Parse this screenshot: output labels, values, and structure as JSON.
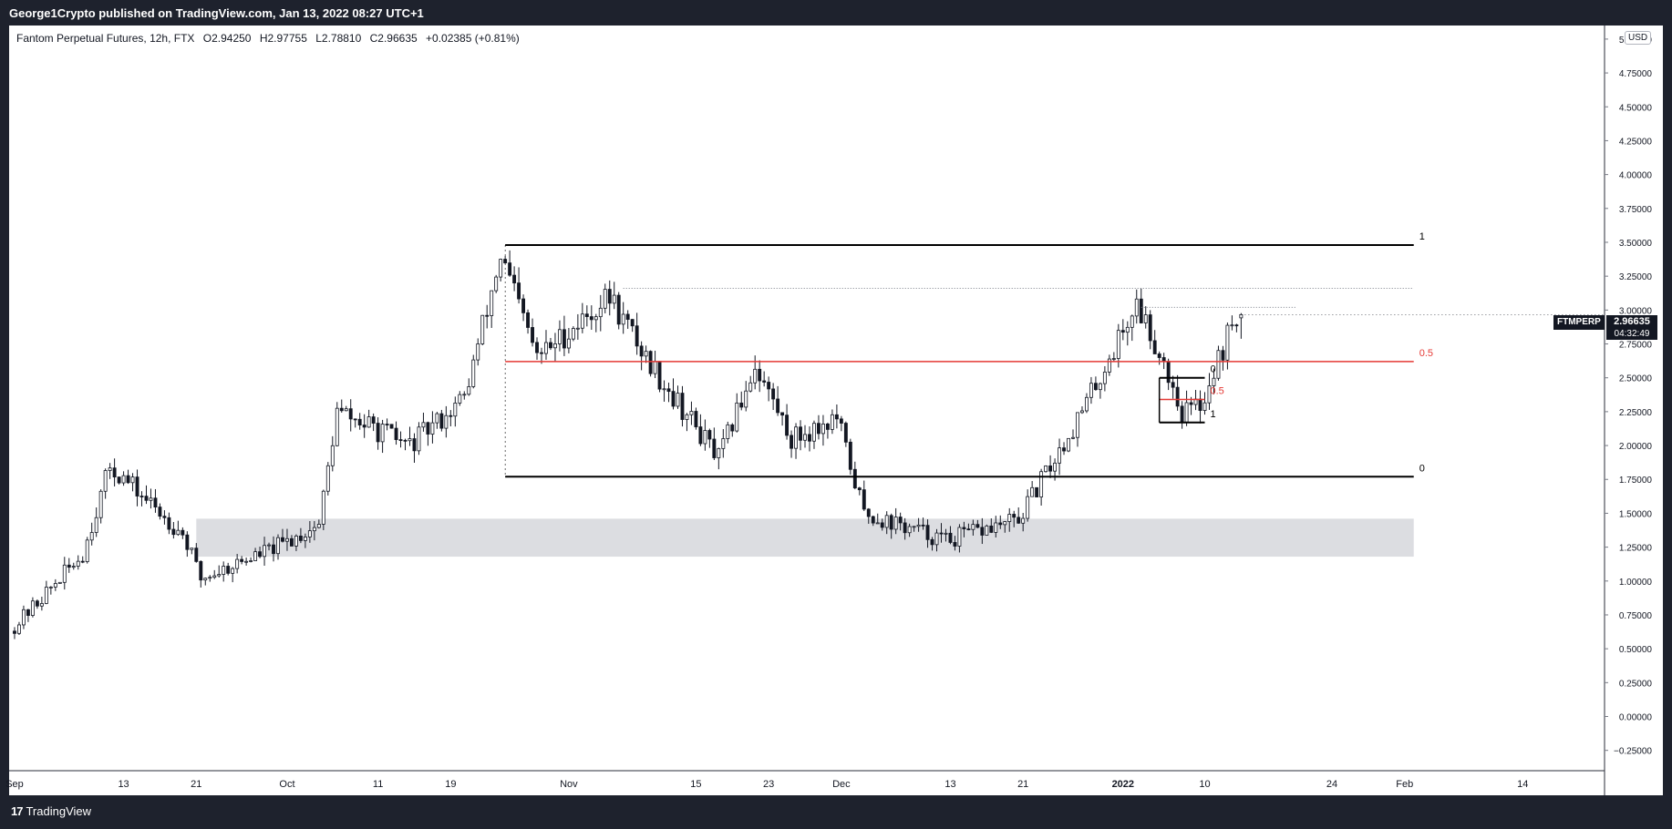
{
  "header": {
    "publish_text": "George1Crypto published on TradingView.com, Jan 13, 2022 08:27 UTC+1"
  },
  "legend": {
    "title": "Fantom Perpetual Futures, 12h, FTX",
    "open": "O2.94250",
    "high": "H2.97755",
    "low": "L2.78810",
    "close": "C2.96635",
    "change": "+0.02385 (+0.81%)"
  },
  "currency_label": "USD",
  "symbol_badge": "FTMPERP",
  "last_price_label": "2.96635",
  "countdown_label": "04:32:49",
  "footer": {
    "brand": "TradingView"
  },
  "colors": {
    "up": "#131722",
    "down": "#131722",
    "fib_mid": "#e53935",
    "zone": "#dcdde1",
    "level": "#000000"
  },
  "chart_data": {
    "type": "candlestick",
    "title": "",
    "xlabel": "",
    "ylabel": "",
    "y_tick_labels": [
      "5.00000",
      "4.75000",
      "4.50000",
      "4.25000",
      "4.00000",
      "3.75000",
      "3.50000",
      "3.25000",
      "3.00000",
      "2.75000",
      "2.50000",
      "2.25000",
      "2.00000",
      "1.75000",
      "1.50000",
      "1.25000",
      "1.00000",
      "0.75000",
      "0.50000",
      "0.25000",
      "0.00000",
      "−0.25000"
    ],
    "y_ticks": [
      5.0,
      4.75,
      4.5,
      4.25,
      4.0,
      3.75,
      3.5,
      3.25,
      3.0,
      2.75,
      2.5,
      2.25,
      2.0,
      1.75,
      1.5,
      1.25,
      1.0,
      0.75,
      0.5,
      0.25,
      0.0,
      -0.25
    ],
    "ylim": [
      -0.4,
      5.08
    ],
    "x_ticks": [
      {
        "label": "Sep",
        "x": 0,
        "bold": false
      },
      {
        "label": "13",
        "x": 12,
        "bold": false
      },
      {
        "label": "21",
        "x": 20,
        "bold": false
      },
      {
        "label": "Oct",
        "x": 30,
        "bold": false
      },
      {
        "label": "11",
        "x": 40,
        "bold": false
      },
      {
        "label": "19",
        "x": 48,
        "bold": false
      },
      {
        "label": "Nov",
        "x": 61,
        "bold": false
      },
      {
        "label": "15",
        "x": 75,
        "bold": false
      },
      {
        "label": "23",
        "x": 83,
        "bold": false
      },
      {
        "label": "Dec",
        "x": 91,
        "bold": false
      },
      {
        "label": "13",
        "x": 103,
        "bold": false
      },
      {
        "label": "21",
        "x": 111,
        "bold": false
      },
      {
        "label": "2022",
        "x": 122,
        "bold": true
      },
      {
        "label": "10",
        "x": 131,
        "bold": false
      },
      {
        "label": "24",
        "x": 145,
        "bold": false
      },
      {
        "label": "Feb",
        "x": 153,
        "bold": false
      },
      {
        "label": "14",
        "x": 166,
        "bold": false
      }
    ],
    "xlim": [
      -0.5,
      175
    ],
    "path_days": [
      0,
      8,
      11,
      19,
      21,
      30,
      34,
      36,
      44,
      50,
      54,
      58,
      66,
      70,
      78,
      82,
      86,
      91,
      94,
      103,
      111,
      118,
      124,
      127,
      129,
      131,
      135
    ],
    "path_prices": [
      0.63,
      1.2,
      1.85,
      1.35,
      1.02,
      1.27,
      1.42,
      2.25,
      2.0,
      2.35,
      3.4,
      2.65,
      3.1,
      2.65,
      1.9,
      2.6,
      2.05,
      2.2,
      1.5,
      1.3,
      1.45,
      2.25,
      3.05,
      2.62,
      2.25,
      2.3,
      2.97
    ],
    "last_candle": {
      "open": 2.9425,
      "high": 2.97755,
      "low": 2.7881,
      "close": 2.96635
    },
    "lines": [
      {
        "label": "1",
        "y": 3.48,
        "x1": 54,
        "x2": 154,
        "color": "#000000"
      },
      {
        "label": "0.5",
        "y": 2.62,
        "x1": 54,
        "x2": 154,
        "color": "#e53935"
      },
      {
        "label": "0",
        "y": 1.77,
        "x1": 54,
        "x2": 154,
        "color": "#000000"
      },
      {
        "label": "0",
        "y": 2.5,
        "x1": 126,
        "x2": 131,
        "color": "#000000"
      },
      {
        "label": "0.5",
        "y": 2.34,
        "x1": 126,
        "x2": 131,
        "color": "#e53935"
      },
      {
        "label": "1",
        "y": 2.17,
        "x1": 126,
        "x2": 131,
        "color": "#000000"
      }
    ],
    "dotted_lines": [
      {
        "y": 3.16,
        "x1": 67,
        "x2": 154
      },
      {
        "y": 3.02,
        "x1": 124,
        "x2": 141
      }
    ],
    "zone": {
      "y_low": 1.18,
      "y_high": 1.46,
      "x1": 20,
      "x2": 154
    }
  }
}
